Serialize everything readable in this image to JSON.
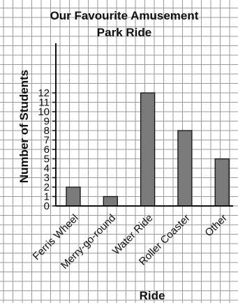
{
  "chart_data": {
    "type": "bar",
    "title_line1": "Our Favourite Amusement",
    "title_line2": "Park Ride",
    "xlabel": "Ride",
    "ylabel": "Number of Students",
    "categories": [
      "Ferris Wheel",
      "Merry-go-round",
      "Water Ride",
      "Roller Coaster",
      "Other"
    ],
    "values": [
      2,
      1,
      12,
      8,
      5
    ],
    "ylim": [
      0,
      12
    ],
    "yticks": [
      0,
      1,
      2,
      3,
      4,
      5,
      6,
      7,
      8,
      9,
      10,
      11,
      12
    ],
    "grid": true,
    "bar_color": "#7a7a7a",
    "grid_color": "#9a9a9a"
  }
}
